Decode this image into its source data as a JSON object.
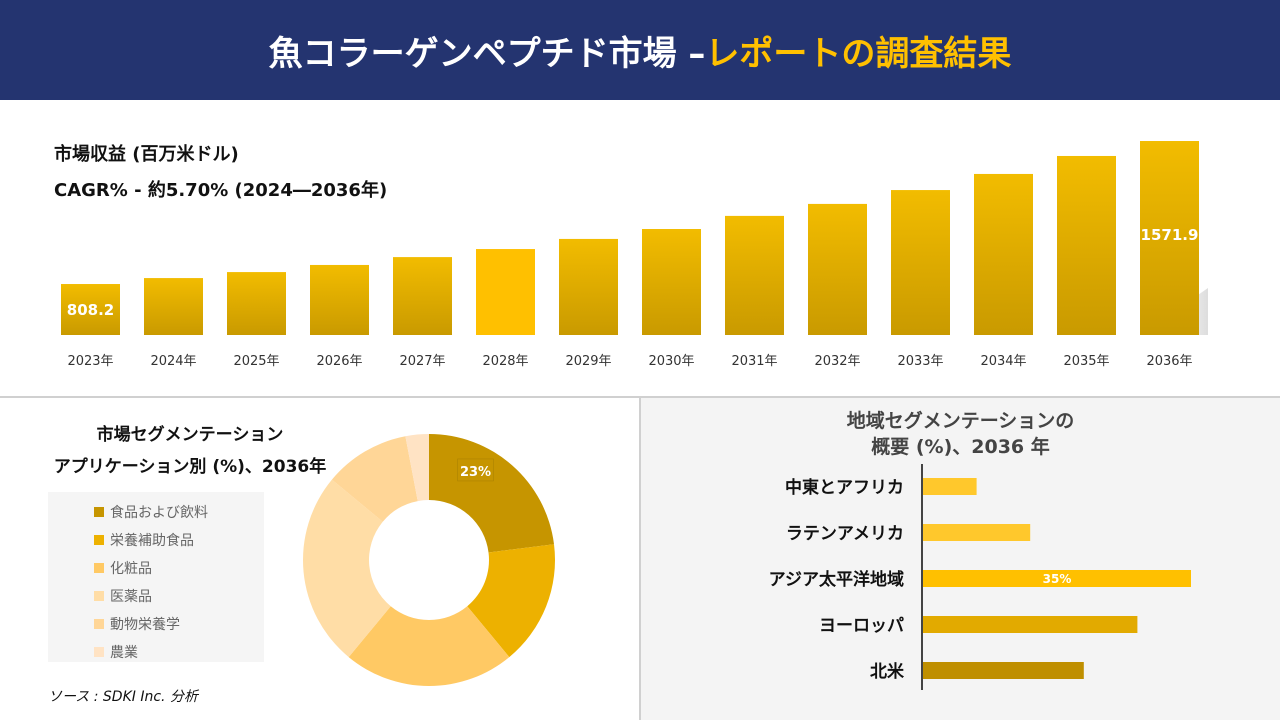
{
  "header": {
    "title_main": "魚コラーゲンペプチド市場 –",
    "title_accent": "レポートの調査結果"
  },
  "revenue": {
    "label": "市場収益 (百万米ドル)",
    "cagr": "CAGR% - 約5.70% (2024―2036年)"
  },
  "chart_data": [
    {
      "type": "bar",
      "categories": [
        "2023年",
        "2024年",
        "2025年",
        "2026年",
        "2027年",
        "2028年",
        "2029年",
        "2030年",
        "2031年",
        "2032年",
        "2033年",
        "2034年",
        "2035年",
        "2036年"
      ],
      "values": [
        808.2,
        840,
        872,
        910,
        952,
        995,
        1049,
        1102,
        1172,
        1236,
        1310,
        1396,
        1492,
        1571.9
      ],
      "data_labels": {
        "0": "808.2",
        "13": "1571.9"
      },
      "colors": {
        "bar": "#D4A500",
        "highlight": "#FFC000"
      }
    },
    {
      "type": "pie",
      "title": "市場セグメンテーション アプリケーション別 (%)、2036年",
      "categories": [
        "食品および飲料",
        "栄養補助食品",
        "化粧品",
        "医薬品",
        "動物栄養学",
        "農業"
      ],
      "values": [
        23,
        16,
        22,
        25,
        11,
        3
      ],
      "data_labels": {
        "0": "23%"
      },
      "colors": [
        "#C69500",
        "#EDB100",
        "#FFC964",
        "#FFDDA6",
        "#FFD697",
        "#FFE3C4"
      ]
    },
    {
      "type": "bar",
      "orientation": "horizontal",
      "title": "地域セグメンテーションの 概要 (%)、2036 年",
      "categories": [
        "中東とアフリカ",
        "ラテンアメリカ",
        "アジア太平洋地域",
        "ヨーロッパ",
        "北米"
      ],
      "values": [
        7,
        14,
        35,
        28,
        21
      ],
      "data_labels": {
        "2": "35%"
      },
      "colors": [
        "#FFC82C",
        "#FFC82C",
        "#FFC000",
        "#E2AA00",
        "#BF8F00"
      ]
    }
  ],
  "donut": {
    "title1": "市場セグメンテーション",
    "title2": "アプリケーション別 (%)、2036年"
  },
  "region": {
    "title1": "地域セグメンテーションの",
    "title2": "概要 (%)、2036 年"
  },
  "source": "ソース : SDKI Inc. 分析"
}
